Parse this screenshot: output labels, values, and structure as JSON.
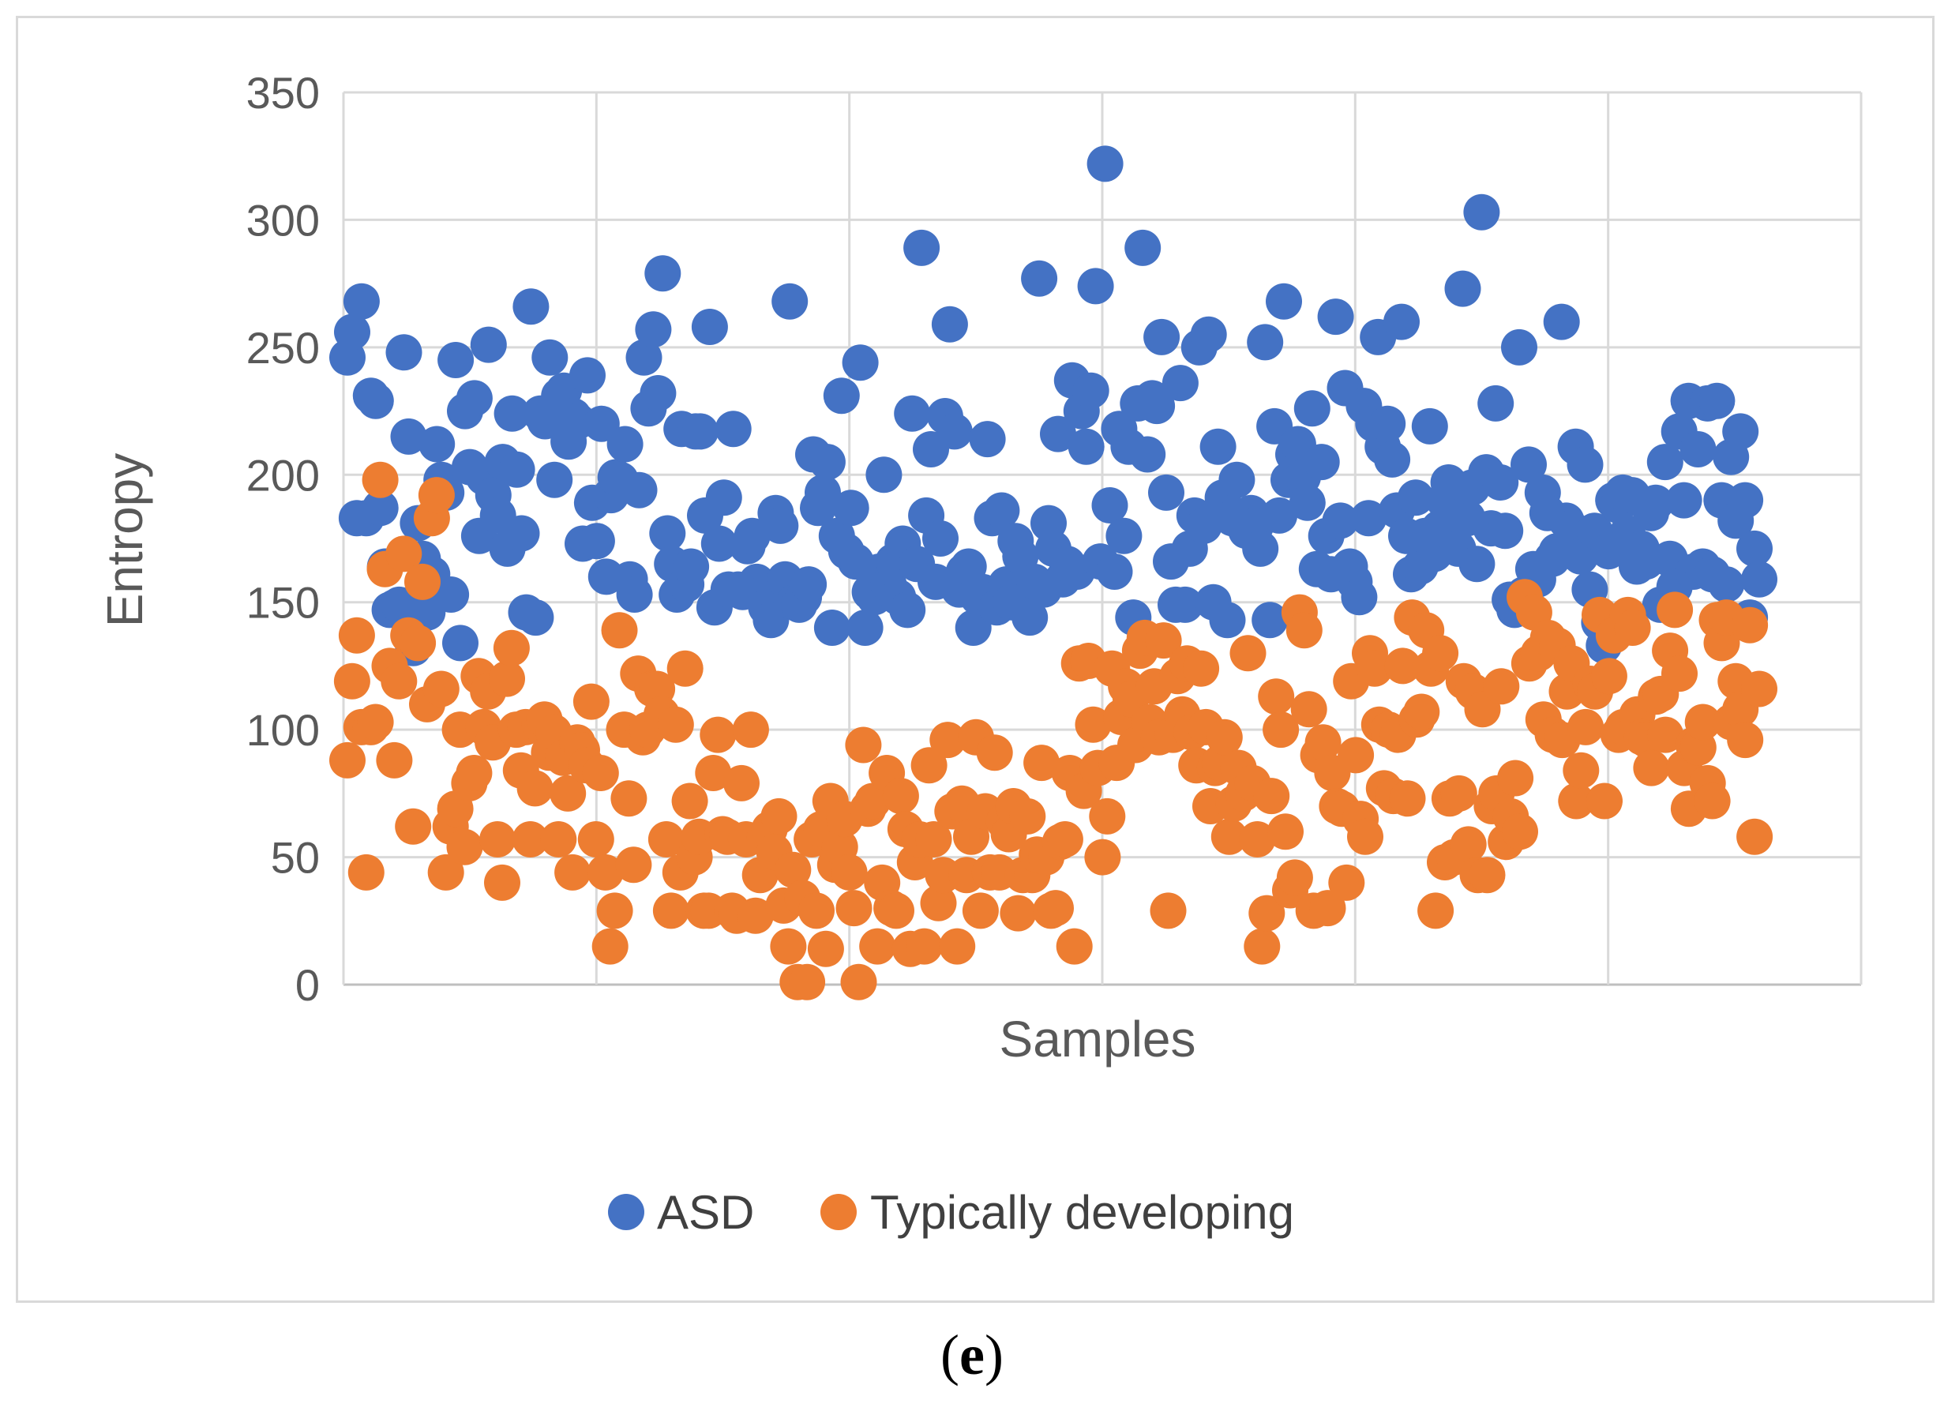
{
  "panel_label": {
    "open": "(",
    "letter": "e",
    "close": ")"
  },
  "chart_data": {
    "type": "scatter",
    "title": "",
    "xlabel": "Samples",
    "ylabel": "Entropy",
    "xlim": [
      0,
      600
    ],
    "ylim": [
      0,
      350
    ],
    "yticks": [
      "0",
      "50",
      "100",
      "150",
      "200",
      "250",
      "300",
      "350"
    ],
    "grid": true,
    "legend_position": "bottom",
    "series": [
      {
        "name": "ASD",
        "color": "#4472C4",
        "values": [
          246,
          256,
          183,
          268,
          183,
          231,
          229,
          187,
          164,
          147,
          148,
          149,
          248,
          215,
          132,
          181,
          167,
          146,
          161,
          212,
          198,
          193,
          153,
          245,
          134,
          225,
          203,
          230,
          176,
          199,
          251,
          192,
          184,
          205,
          171,
          224,
          202,
          177,
          146,
          266,
          144,
          224,
          221,
          246,
          198,
          231,
          233,
          213,
          223,
          221,
          173,
          239,
          189,
          174,
          220,
          160,
          192,
          199,
          198,
          212,
          159,
          153,
          194,
          246,
          226,
          257,
          232,
          279,
          177,
          165,
          153,
          218,
          157,
          164,
          217,
          217,
          184,
          258,
          148,
          173,
          191,
          155,
          218,
          155,
          154,
          172,
          176,
          158,
          153,
          148,
          143,
          185,
          180,
          159,
          268,
          150,
          149,
          152,
          157,
          208,
          187,
          193,
          205,
          140,
          176,
          231,
          170,
          187,
          166,
          244,
          140,
          154,
          152,
          162,
          200,
          157,
          166,
          152,
          173,
          147,
          224,
          165,
          289,
          184,
          210,
          158,
          175,
          223,
          259,
          217,
          155,
          162,
          164,
          140,
          152,
          154,
          214,
          183,
          148,
          186,
          157,
          150,
          174,
          168,
          148,
          144,
          158,
          277,
          155,
          181,
          171,
          216,
          159,
          165,
          237,
          162,
          225,
          211,
          233,
          274,
          166,
          322,
          188,
          162,
          218,
          176,
          211,
          144,
          228,
          289,
          208,
          230,
          227,
          254,
          193,
          166,
          149,
          236,
          149,
          171,
          184,
          250,
          180,
          255,
          150,
          211,
          191,
          143,
          183,
          198,
          181,
          178,
          185,
          180,
          171,
          252,
          143,
          219,
          184,
          268,
          198,
          208,
          212,
          199,
          189,
          226,
          163,
          205,
          176,
          161,
          262,
          182,
          234,
          164,
          158,
          152,
          227,
          183,
          220,
          254,
          211,
          220,
          206,
          186,
          260,
          176,
          161,
          191,
          164,
          176,
          219,
          169,
          179,
          190,
          197,
          179,
          171,
          273,
          183,
          195,
          165,
          303,
          201,
          179,
          228,
          197,
          178,
          151,
          147,
          250,
          153,
          204,
          163,
          159,
          193,
          185,
          167,
          170,
          260,
          182,
          179,
          211,
          168,
          204,
          155,
          178,
          142,
          133,
          170,
          190,
          188,
          193,
          177,
          192,
          164,
          171,
          166,
          185,
          189,
          149,
          205,
          167,
          156,
          217,
          190,
          229,
          162,
          210,
          164,
          228,
          161,
          229,
          190,
          157,
          207,
          182,
          217,
          190,
          144,
          171,
          159
        ]
      },
      {
        "name": "Typically developing",
        "color": "#ED7D31",
        "values": [
          88,
          119,
          137,
          101,
          44,
          101,
          103,
          198,
          163,
          125,
          88,
          119,
          169,
          137,
          62,
          134,
          158,
          110,
          183,
          192,
          116,
          44,
          62,
          69,
          100,
          54,
          79,
          83,
          121,
          101,
          115,
          95,
          57,
          40,
          120,
          132,
          100,
          84,
          101,
          57,
          77,
          102,
          104,
          91,
          99,
          57,
          89,
          75,
          44,
          95,
          92,
          86,
          111,
          57,
          83,
          44,
          15,
          29,
          139,
          100,
          73,
          47,
          122,
          97,
          100,
          116,
          116,
          106,
          57,
          29,
          102,
          44,
          124,
          72,
          50,
          58,
          29,
          29,
          83,
          98,
          59,
          58,
          29,
          27,
          79,
          57,
          100,
          27,
          43,
          58,
          61,
          52,
          66,
          31,
          15,
          45,
          1,
          34,
          1,
          57,
          29,
          61,
          14,
          72,
          47,
          54,
          65,
          44,
          30,
          1,
          94,
          69,
          72,
          15,
          40,
          83,
          30,
          29,
          74,
          61,
          14,
          48,
          57,
          15,
          86,
          57,
          32,
          43,
          96,
          68,
          15,
          71,
          43,
          58,
          97,
          29,
          68,
          44,
          91,
          44,
          64,
          59,
          70,
          28,
          43,
          66,
          43,
          51,
          87,
          50,
          29,
          30,
          56,
          57,
          83,
          15,
          126,
          76,
          127,
          102,
          85,
          50,
          66,
          124,
          87,
          105,
          117,
          112,
          94,
          131,
          136,
          103,
          117,
          97,
          135,
          29,
          98,
          121,
          106,
          126,
          99,
          86,
          124,
          101,
          70,
          85,
          87,
          97,
          58,
          71,
          85,
          75,
          130,
          79,
          57,
          15,
          28,
          74,
          113,
          100,
          60,
          37,
          42,
          146,
          139,
          108,
          29,
          90,
          95,
          30,
          83,
          70,
          69,
          40,
          119,
          90,
          65,
          58,
          130,
          124,
          102,
          77,
          100,
          74,
          98,
          125,
          73,
          144,
          104,
          107,
          139,
          124,
          29,
          130,
          48,
          73,
          50,
          75,
          119,
          55,
          115,
          43,
          108,
          43,
          70,
          75,
          117,
          56,
          66,
          81,
          60,
          152,
          126,
          146,
          130,
          104,
          136,
          98,
          133,
          96,
          115,
          126,
          72,
          84,
          101,
          118,
          115,
          145,
          72,
          121,
          137,
          98,
          101,
          145,
          140,
          106,
          97,
          96,
          85,
          113,
          114,
          98,
          131,
          147,
          122,
          85,
          69,
          94,
          93,
          103,
          79,
          72,
          143,
          134,
          144,
          103,
          119,
          108,
          96,
          141,
          58,
          116
        ]
      }
    ]
  },
  "colors": {
    "grid": "#d9d9d9",
    "axis": "#bfbfbf"
  }
}
